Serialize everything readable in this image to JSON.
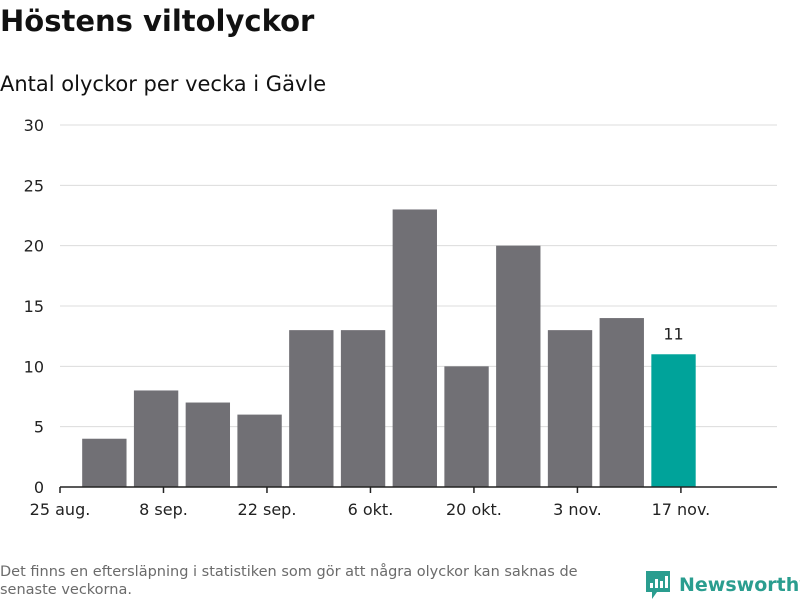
{
  "title": "Höstens viltolyckor",
  "subtitle": "Antal olyckor per vecka i Gävle",
  "footnote": "Det finns en eftersläpning i statistiken som gör att några olyckor kan saknas de senaste veckorna.",
  "brand": "Newsworthy",
  "colors": {
    "bar": "#717075",
    "highlight": "#00a39a",
    "grid": "#dcdcdc",
    "axis": "#222222",
    "brand": "#2a9d8f"
  },
  "chart_data": {
    "type": "bar",
    "x": [
      "2023-08-28",
      "2023-09-04",
      "2023-09-11",
      "2023-09-18",
      "2023-09-25",
      "2023-10-02",
      "2023-10-09",
      "2023-10-16",
      "2023-10-23",
      "2023-10-30",
      "2023-11-06",
      "2023-11-13"
    ],
    "values": [
      4,
      8,
      7,
      6,
      13,
      13,
      23,
      10,
      20,
      13,
      14,
      11
    ],
    "highlight_index": 11,
    "highlight_label": "11",
    "xlim": [
      "2023-08-25",
      "2023-11-30"
    ],
    "xtick_values": [
      "2023-08-25",
      "2023-09-08",
      "2023-09-22",
      "2023-10-06",
      "2023-10-20",
      "2023-11-03",
      "2023-11-17"
    ],
    "xtick_labels": [
      "25 aug.",
      "8 sep.",
      "22 sep.",
      "6 okt.",
      "20 okt.",
      "3 nov.",
      "17 nov."
    ],
    "yticks": [
      0,
      5,
      10,
      15,
      20,
      25,
      30
    ],
    "ylim": [
      0,
      30
    ],
    "grid": true
  }
}
